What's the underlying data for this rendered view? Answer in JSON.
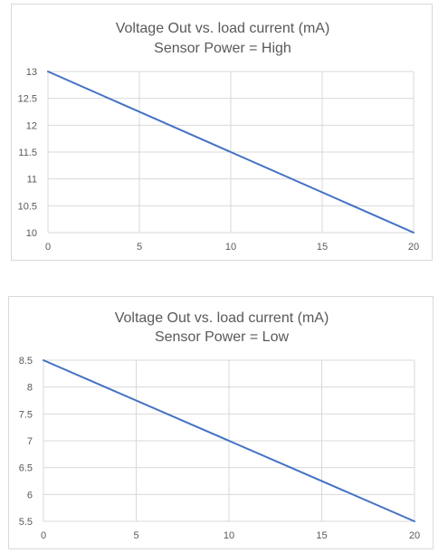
{
  "chart_data": [
    {
      "type": "line",
      "title": "Voltage Out vs. load current (mA)",
      "subtitle": "Sensor Power = High",
      "x": [
        0,
        20
      ],
      "series": [
        {
          "values": [
            13,
            10
          ],
          "color": "#4472c4"
        }
      ],
      "xticks": [
        "0",
        "5",
        "10",
        "15",
        "20"
      ],
      "yticks": [
        "10",
        "10.5",
        "11",
        "11.5",
        "12",
        "12.5",
        "13"
      ],
      "xlim": [
        0,
        20
      ],
      "ylim": [
        10,
        13
      ],
      "grid": true,
      "legend": "none"
    },
    {
      "type": "line",
      "title": "Voltage Out vs. load current (mA)",
      "subtitle": "Sensor Power = Low",
      "x": [
        0,
        20
      ],
      "series": [
        {
          "values": [
            8.5,
            5.5
          ],
          "color": "#4472c4"
        }
      ],
      "xticks": [
        "0",
        "5",
        "10",
        "15",
        "20"
      ],
      "yticks": [
        "5.5",
        "6",
        "6.5",
        "7",
        "7.5",
        "8",
        "8.5"
      ],
      "xlim": [
        0,
        20
      ],
      "ylim": [
        5.5,
        8.5
      ],
      "grid": true,
      "legend": "none"
    }
  ]
}
